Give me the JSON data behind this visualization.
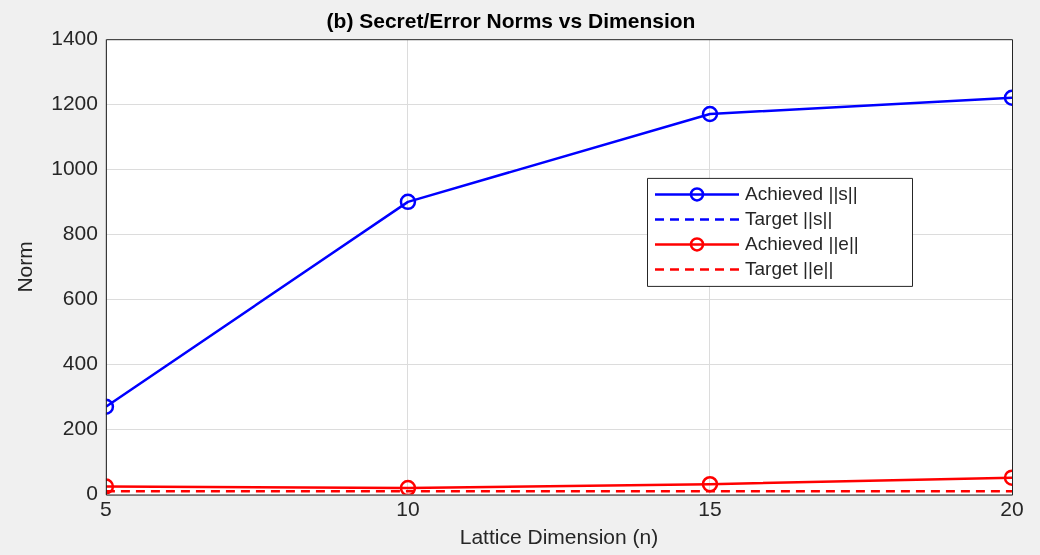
{
  "chart_data": {
    "type": "line",
    "title": "(b) Secret/Error Norms vs Dimension",
    "xlabel": "Lattice Dimension (n)",
    "ylabel": "Norm",
    "x": [
      5,
      10,
      15,
      20
    ],
    "xlim": [
      5,
      20
    ],
    "xticks": [
      5,
      10,
      15,
      20
    ],
    "ylim": [
      0,
      1400
    ],
    "yticks": [
      0,
      200,
      400,
      600,
      800,
      1000,
      1200,
      1400
    ],
    "series": [
      {
        "name": "Achieved ||s||",
        "color": "#0000ff",
        "values": [
          270,
          900,
          1170,
          1220
        ],
        "marker": "circle",
        "line_style": "solid"
      },
      {
        "name": "Target ||s||",
        "color": "#0000ff",
        "values": [
          null,
          null,
          null,
          null
        ],
        "marker": "none",
        "line_style": "dashed"
      },
      {
        "name": "Achieved ||e||",
        "color": "#ff0000",
        "values": [
          25,
          20,
          32,
          52
        ],
        "marker": "circle",
        "line_style": "solid"
      },
      {
        "name": "Target ||e||",
        "color": "#ff0000",
        "values": [
          10,
          10,
          10,
          10
        ],
        "marker": "none",
        "line_style": "dashed"
      }
    ],
    "grid": true,
    "legend": "right"
  }
}
